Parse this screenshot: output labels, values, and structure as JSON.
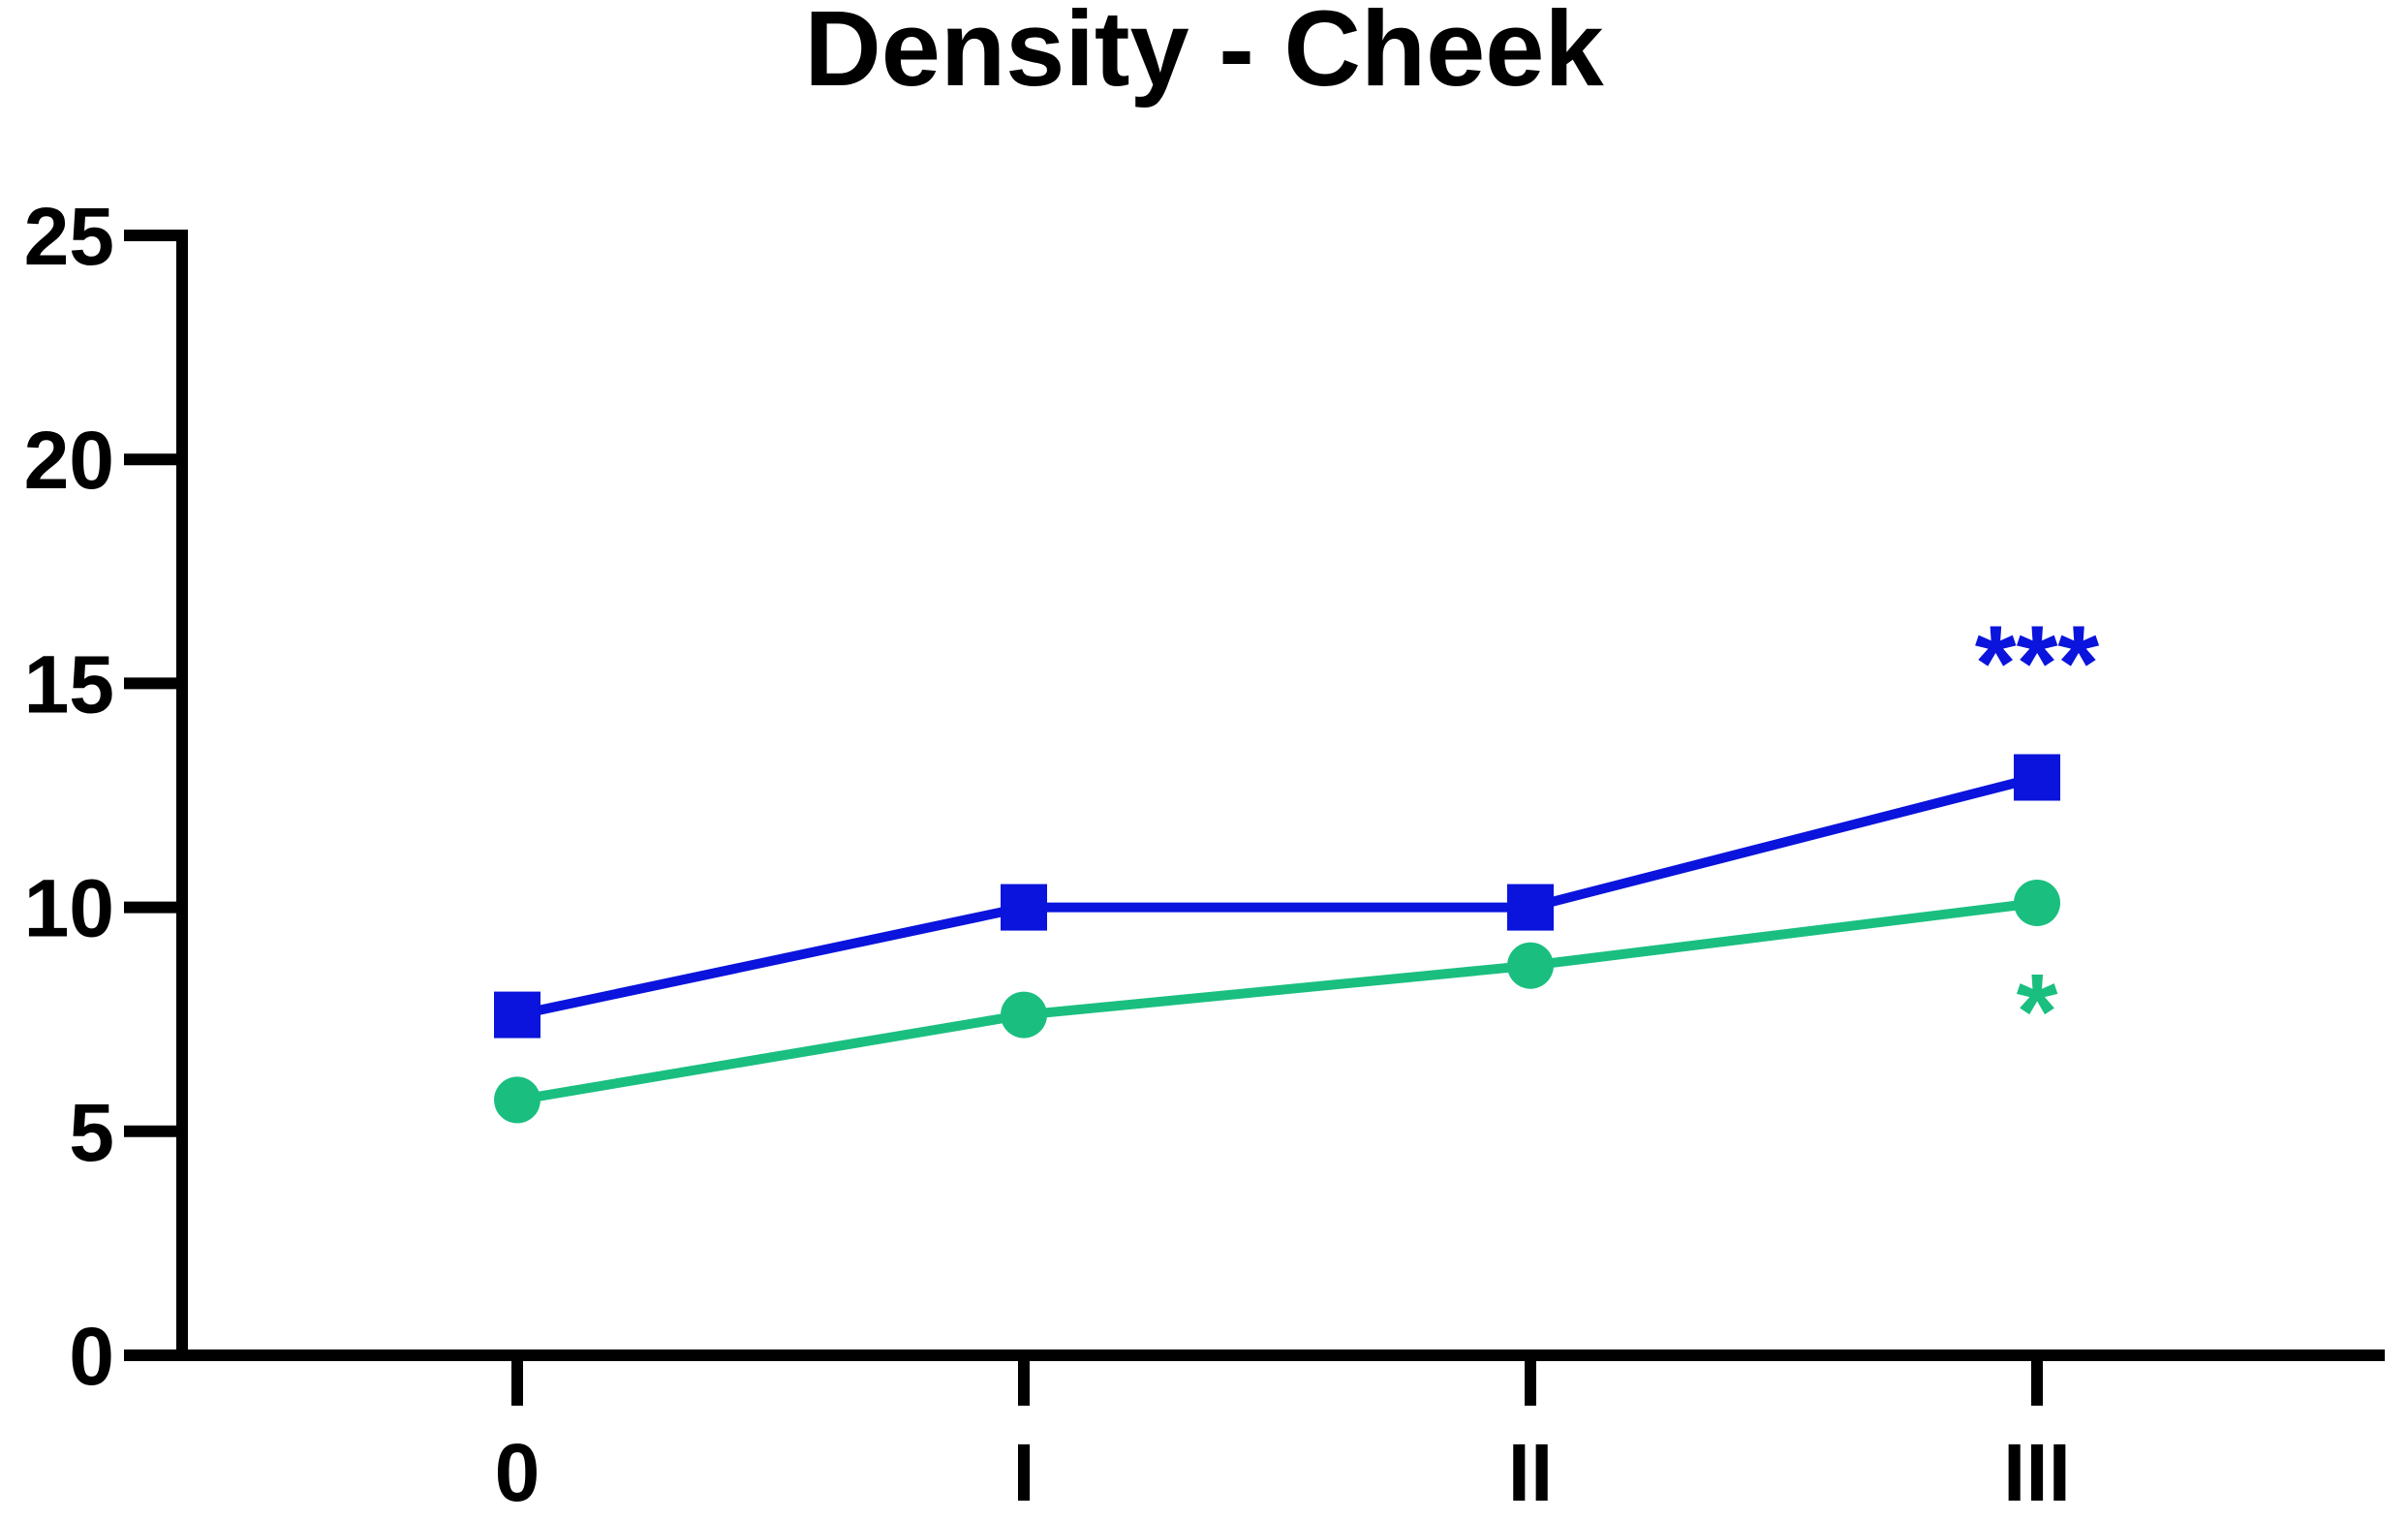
{
  "chart_data": {
    "type": "line",
    "title": "Density - Cheek",
    "xlabel": "",
    "ylabel": "",
    "categories": [
      "0",
      "I",
      "II",
      "III"
    ],
    "ylim": [
      0,
      25
    ],
    "yticks": [
      "0",
      "5",
      "10",
      "15",
      "20",
      "25"
    ],
    "grid": false,
    "legend": "none",
    "series": [
      {
        "marker": "square",
        "color": "#0a14dc",
        "values": [
          7.6,
          10.0,
          10.0,
          12.9
        ]
      },
      {
        "marker": "circle",
        "color": "#1abf80",
        "values": [
          5.7,
          7.6,
          8.7,
          10.1
        ]
      }
    ],
    "annotations": [
      {
        "text": "***",
        "category": "III",
        "color": "#0a14dc",
        "position": "above",
        "series": 0
      },
      {
        "text": "*",
        "category": "III",
        "color": "#1abf80",
        "position": "below",
        "series": 1
      }
    ]
  }
}
